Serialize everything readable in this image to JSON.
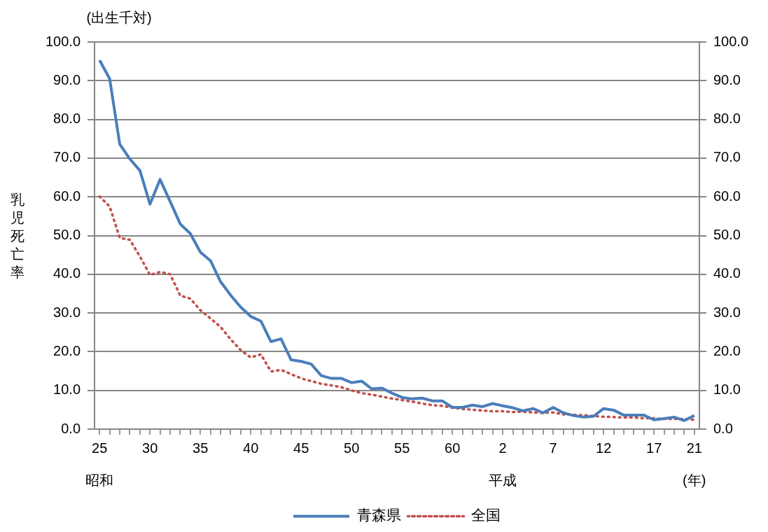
{
  "chart_data": {
    "type": "line",
    "ylabel": "乳児死亡率",
    "annotations": [
      "(出生千対)",
      "昭和",
      "平成",
      "(年)"
    ],
    "categories": [
      "25",
      null,
      null,
      null,
      null,
      "30",
      null,
      null,
      null,
      null,
      "35",
      null,
      null,
      null,
      null,
      "40",
      null,
      null,
      null,
      null,
      "45",
      null,
      null,
      null,
      null,
      "50",
      null,
      null,
      null,
      null,
      "55",
      null,
      null,
      null,
      null,
      "60",
      null,
      null,
      null,
      null,
      "2",
      null,
      null,
      null,
      null,
      "7",
      null,
      null,
      null,
      null,
      "12",
      null,
      null,
      null,
      null,
      "17",
      null,
      null,
      null,
      "21"
    ],
    "series": [
      {
        "name": "青森県",
        "color": "#4a7ebb",
        "line_style": "solid",
        "values": [
          95.3,
          90.5,
          73.6,
          69.8,
          66.8,
          58.1,
          64.5,
          58.8,
          53.0,
          50.5,
          45.7,
          43.5,
          38.1,
          34.6,
          31.5,
          29.1,
          27.9,
          22.6,
          23.3,
          17.9,
          17.5,
          16.8,
          13.8,
          13.1,
          13.1,
          12.0,
          12.4,
          10.4,
          10.6,
          9.3,
          8.2,
          7.8,
          8.0,
          7.3,
          7.3,
          5.6,
          5.6,
          6.2,
          5.8,
          6.6,
          6.0,
          5.5,
          4.7,
          5.3,
          4.2,
          5.6,
          4.2,
          3.5,
          3.1,
          3.3,
          5.3,
          4.9,
          3.6,
          3.6,
          3.6,
          2.4,
          2.7,
          3.1,
          2.2,
          3.5
        ]
      },
      {
        "name": "全国",
        "color": "#c0504d",
        "line_style": "dotted",
        "values": [
          60.1,
          57.5,
          49.4,
          48.9,
          44.6,
          39.8,
          40.6,
          40.0,
          34.5,
          33.7,
          30.7,
          28.6,
          26.4,
          23.2,
          20.4,
          18.5,
          19.3,
          14.9,
          15.3,
          14.2,
          13.1,
          12.4,
          11.7,
          11.3,
          10.8,
          10.0,
          9.3,
          8.9,
          8.4,
          7.9,
          7.5,
          7.1,
          6.6,
          6.2,
          6.0,
          5.5,
          5.2,
          5.0,
          4.8,
          4.6,
          4.6,
          4.4,
          4.5,
          4.3,
          4.2,
          4.3,
          3.8,
          3.7,
          3.6,
          3.4,
          3.2,
          3.1,
          3.0,
          3.0,
          2.8,
          2.8,
          2.6,
          2.6,
          2.6,
          2.4
        ]
      }
    ],
    "ylim": [
      0,
      100
    ],
    "yticks": [
      {
        "value": 0,
        "label": "0.0"
      },
      {
        "value": 10,
        "label": "10.0"
      },
      {
        "value": 20,
        "label": "20.0"
      },
      {
        "value": 30,
        "label": "30.0"
      },
      {
        "value": 40,
        "label": "40.0"
      },
      {
        "value": 50,
        "label": "50.0"
      },
      {
        "value": 60,
        "label": "60.0"
      },
      {
        "value": 70,
        "label": "70.0"
      },
      {
        "value": 80,
        "label": "80.0"
      },
      {
        "value": 90,
        "label": "90.0"
      },
      {
        "value": 100,
        "label": "100.0"
      }
    ],
    "y2lim": [
      0,
      100
    ],
    "y2ticks": [
      {
        "value": 0,
        "label": "0.0"
      },
      {
        "value": 10,
        "label": "10.0"
      },
      {
        "value": 20,
        "label": "20.0"
      },
      {
        "value": 30,
        "label": "30.0"
      },
      {
        "value": 40,
        "label": "40.0"
      },
      {
        "value": 50,
        "label": "50.0"
      },
      {
        "value": 60,
        "label": "60.0"
      },
      {
        "value": 70,
        "label": "70.0"
      },
      {
        "value": 80,
        "label": "80.0"
      },
      {
        "value": 90,
        "label": "90.0"
      },
      {
        "value": 100,
        "label": "100.0"
      }
    ],
    "grid": "y",
    "legend": "bottom",
    "marker": "none"
  }
}
